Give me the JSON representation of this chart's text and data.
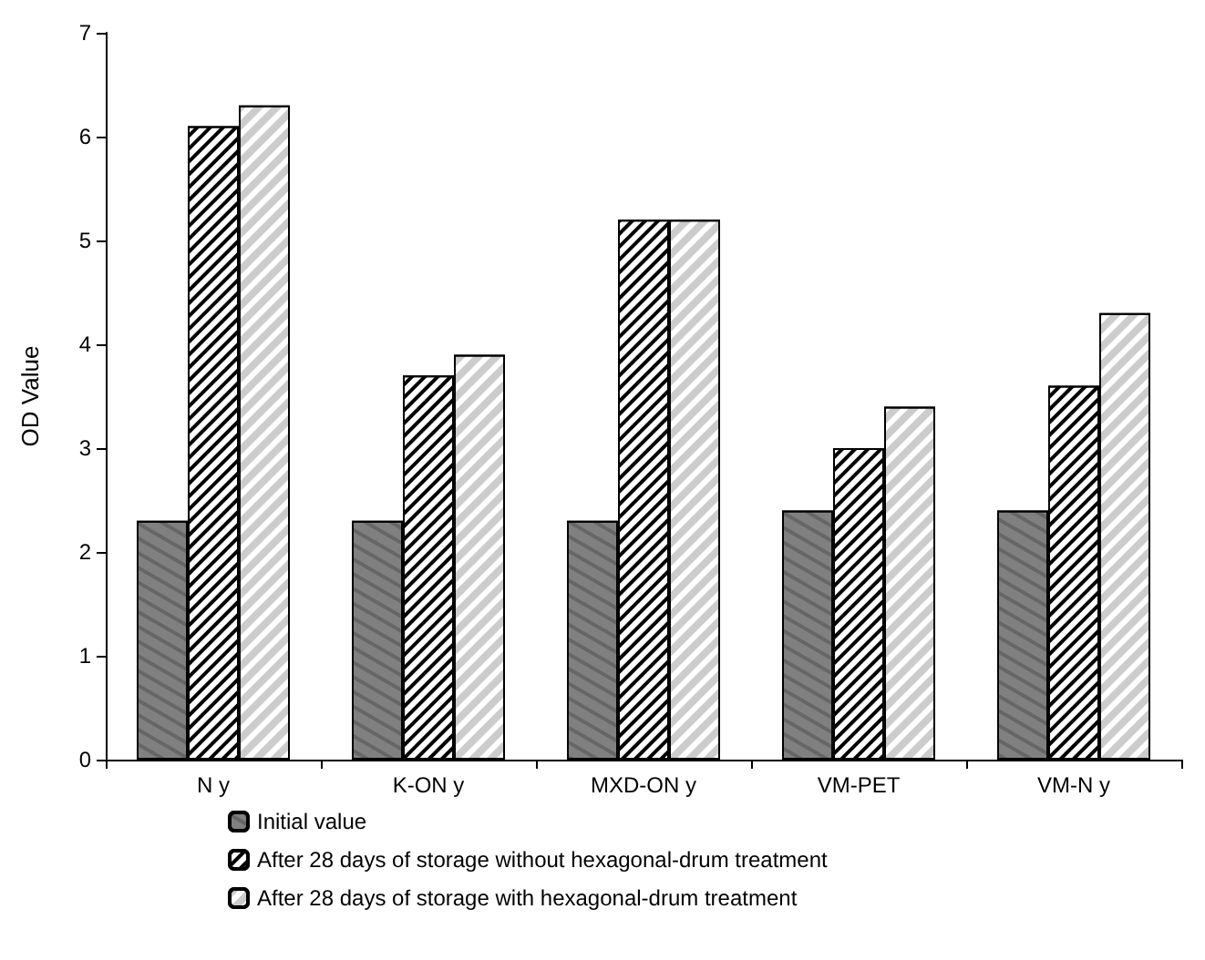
{
  "chart_data": {
    "type": "bar",
    "ylabel": "OD Value",
    "categories": [
      "N y",
      "K-ON y",
      "MXD-ON y",
      "VM-PET",
      "VM-N y"
    ],
    "series": [
      {
        "name": "Initial value",
        "color": "#808080",
        "values": [
          2.3,
          2.3,
          2.3,
          2.4,
          2.4
        ]
      },
      {
        "name": "After 28 days of storage without hexagonal-drum treatment",
        "color": "#000000",
        "values": [
          6.1,
          3.7,
          5.2,
          3.0,
          3.6
        ]
      },
      {
        "name": "After 28 days of storage with hexagonal-drum treatment",
        "color": "#ffffff",
        "values": [
          6.3,
          3.9,
          5.2,
          3.4,
          4.3
        ]
      }
    ],
    "ylim": [
      0,
      7
    ],
    "yticks": [
      0,
      1,
      2,
      3,
      4,
      5,
      6,
      7
    ],
    "grid": false,
    "legend": "bottom"
  }
}
